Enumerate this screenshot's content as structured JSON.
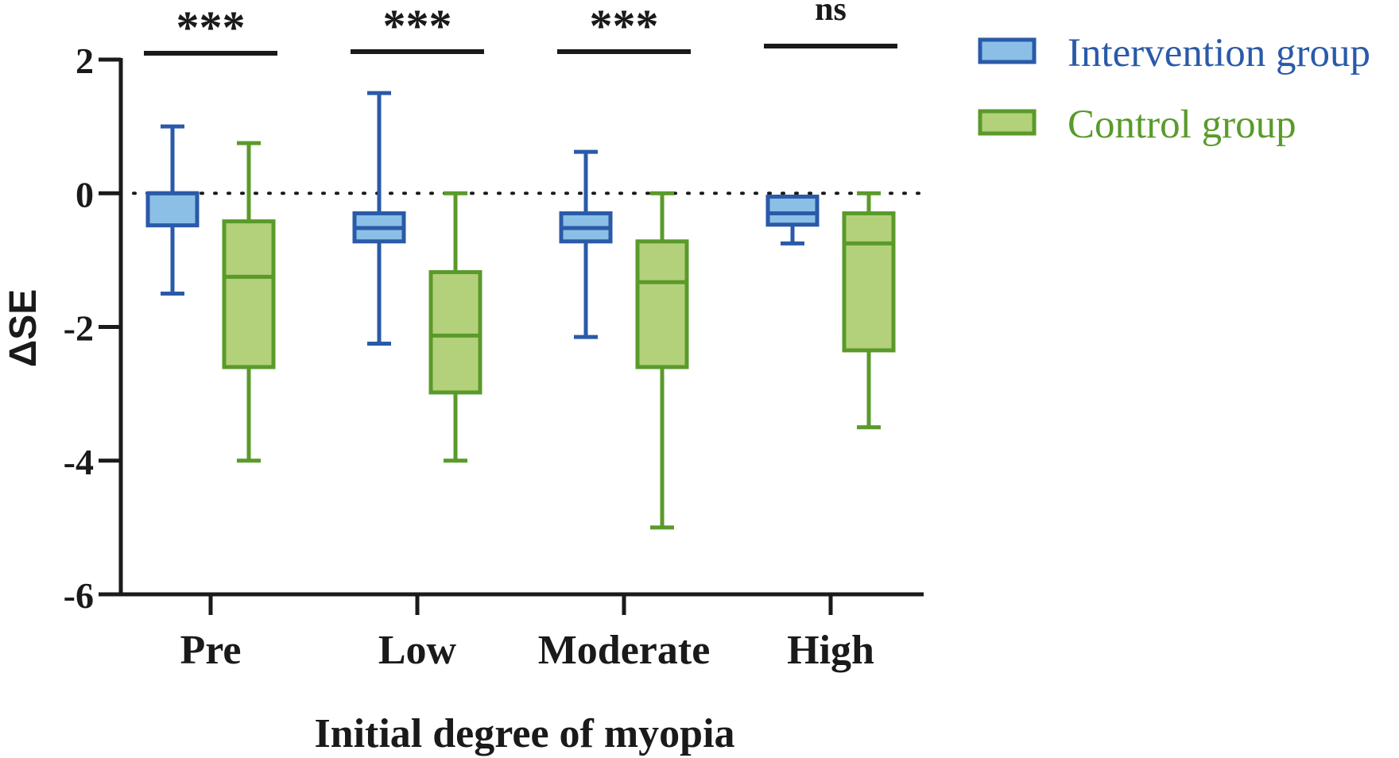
{
  "chart_data": {
    "type": "box",
    "xlabel": "Initial degree of myopia",
    "ylabel": "ΔSE",
    "ylim": [
      -6,
      2
    ],
    "yticks": [
      2,
      0,
      -2,
      -4,
      -6
    ],
    "ytick_labels": [
      "2",
      "0",
      "-2",
      "-4",
      "-6"
    ],
    "reference_line": 0,
    "categories": [
      "Pre",
      "Low",
      "Moderate",
      "High"
    ],
    "series": [
      {
        "name": "Intervention group",
        "stroke": "#2a5aa8",
        "fill": "#8cbfe6",
        "boxes": [
          {
            "min": -1.5,
            "q1": -0.48,
            "median": 0,
            "q3": 0,
            "max": 1.0
          },
          {
            "min": -2.25,
            "q1": -0.72,
            "median": -0.52,
            "q3": -0.3,
            "max": 1.5
          },
          {
            "min": -2.15,
            "q1": -0.72,
            "median": -0.52,
            "q3": -0.3,
            "max": 0.62
          },
          {
            "min": -0.75,
            "q1": -0.47,
            "median": -0.3,
            "q3": -0.05,
            "max": -0.05
          }
        ]
      },
      {
        "name": "Control group",
        "stroke": "#5a9a2a",
        "fill": "#b3d17a",
        "boxes": [
          {
            "min": -4.0,
            "q1": -2.6,
            "median": -1.25,
            "q3": -0.42,
            "max": 0.75
          },
          {
            "min": -4.0,
            "q1": -2.98,
            "median": -2.13,
            "q3": -1.18,
            "max": 0.0
          },
          {
            "min": -5.0,
            "q1": -2.6,
            "median": -1.33,
            "q3": -0.72,
            "max": 0.0
          },
          {
            "min": -3.5,
            "q1": -2.35,
            "median": -0.75,
            "q3": -0.3,
            "max": 0.0
          }
        ]
      }
    ],
    "significance": [
      "***",
      "***",
      "***",
      "ns"
    ]
  }
}
